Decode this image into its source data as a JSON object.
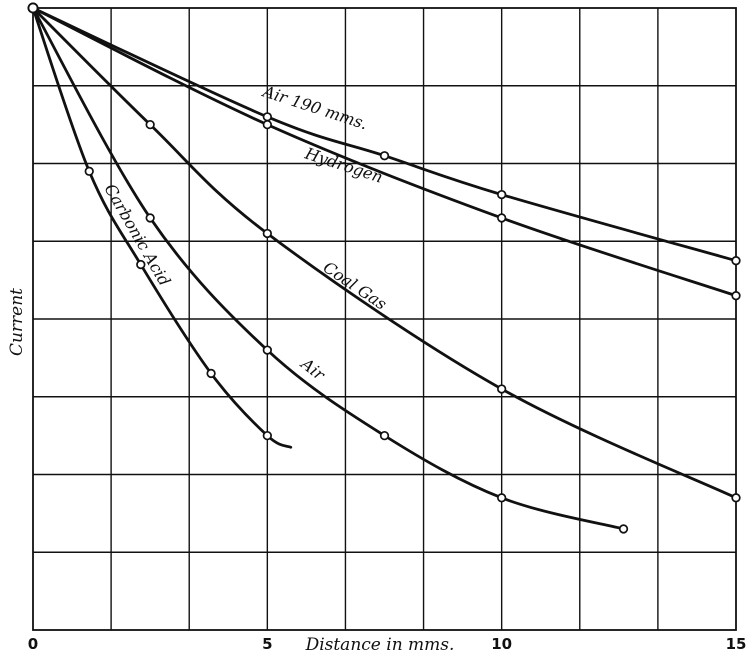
{
  "chart_data": {
    "type": "line",
    "title": "",
    "xlabel": "Distance in mms.",
    "ylabel": "Current",
    "xlim": [
      0,
      15
    ],
    "ylim": [
      0,
      8
    ],
    "grid": true,
    "x_ticks": [
      {
        "value": 0,
        "label": "0"
      },
      {
        "value": 5,
        "label": "5"
      },
      {
        "value": 10,
        "label": "10"
      },
      {
        "value": 15,
        "label": "15"
      }
    ],
    "series": [
      {
        "name": "Air 190 mms.",
        "points": [
          [
            0,
            8.0
          ],
          [
            5,
            6.6
          ],
          [
            7.5,
            6.1
          ],
          [
            10,
            5.6
          ],
          [
            15,
            4.75
          ]
        ]
      },
      {
        "name": "Hydrogen",
        "points": [
          [
            0,
            8.0
          ],
          [
            5,
            6.5
          ],
          [
            10,
            5.3
          ],
          [
            15,
            4.3
          ]
        ]
      },
      {
        "name": "Coal Gas",
        "points": [
          [
            0,
            8.0
          ],
          [
            2.5,
            6.5
          ],
          [
            5,
            5.1
          ],
          [
            10,
            3.1
          ],
          [
            15,
            1.7
          ]
        ]
      },
      {
        "name": "Air",
        "points": [
          [
            0,
            8.0
          ],
          [
            2.5,
            5.3
          ],
          [
            5,
            3.6
          ],
          [
            7.5,
            2.5
          ],
          [
            10,
            1.7
          ],
          [
            12.6,
            1.3
          ]
        ]
      },
      {
        "name": "Carbonic Acid",
        "points": [
          [
            0,
            8.0
          ],
          [
            1.2,
            5.9
          ],
          [
            2.3,
            4.7
          ],
          [
            3.8,
            3.3
          ],
          [
            5,
            2.5
          ],
          [
            5.5,
            2.35
          ]
        ]
      }
    ]
  }
}
